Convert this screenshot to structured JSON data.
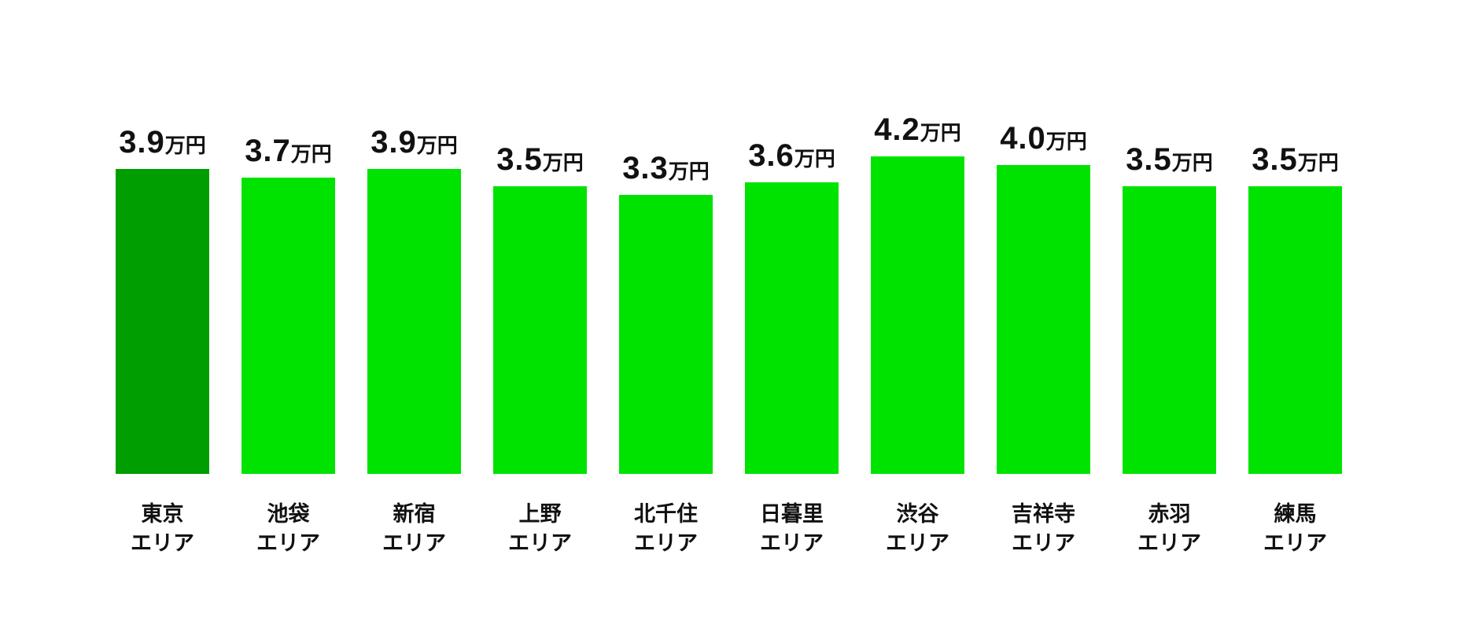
{
  "page": {
    "background_color": "#ffffff",
    "text_color": "#111111"
  },
  "chart_data": {
    "type": "bar",
    "title": "",
    "unit_label": "万円",
    "category_suffix": "エリア",
    "categories": [
      "東京",
      "池袋",
      "新宿",
      "上野",
      "北千住",
      "日暮里",
      "渋谷",
      "吉祥寺",
      "赤羽",
      "練馬"
    ],
    "values": [
      3.9,
      3.7,
      3.9,
      3.5,
      3.3,
      3.6,
      4.2,
      4.0,
      3.5,
      3.5
    ],
    "value_labels": [
      "3.9",
      "3.7",
      "3.9",
      "3.5",
      "3.3",
      "3.6",
      "4.2",
      "4.0",
      "3.5",
      "3.5"
    ],
    "bar_color": "#00E300",
    "highlight_bar_color": "#009E00",
    "highlight_index": 0,
    "grid": false,
    "axes_visible": false,
    "legend": false,
    "value_label_position": "above-bar",
    "category_label_position": "below-bar"
  }
}
